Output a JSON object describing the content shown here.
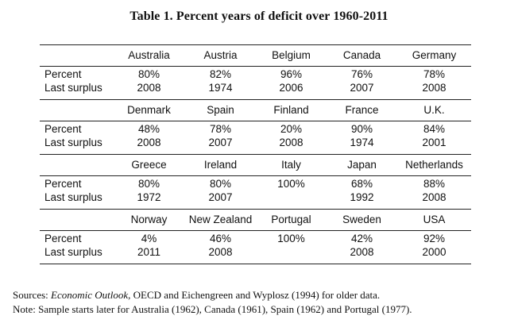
{
  "title": "Table 1. Percent years of deficit over 1960-2011",
  "row_labels": {
    "percent": "Percent",
    "last_surplus": "Last surplus"
  },
  "blocks": [
    {
      "countries": [
        "Australia",
        "Austria",
        "Belgium",
        "Canada",
        "Germany"
      ],
      "percent": [
        "80%",
        "82%",
        "96%",
        "76%",
        "78%"
      ],
      "last_surplus": [
        "2008",
        "1974",
        "2006",
        "2007",
        "2008"
      ]
    },
    {
      "countries": [
        "Denmark",
        "Spain",
        "Finland",
        "France",
        "U.K."
      ],
      "percent": [
        "48%",
        "78%",
        "20%",
        "90%",
        "84%"
      ],
      "last_surplus": [
        "2008",
        "2007",
        "2008",
        "1974",
        "2001"
      ]
    },
    {
      "countries": [
        "Greece",
        "Ireland",
        "Italy",
        "Japan",
        "Netherlands"
      ],
      "percent": [
        "80%",
        "80%",
        "100%",
        "68%",
        "88%"
      ],
      "last_surplus": [
        "1972",
        "2007",
        "",
        "1992",
        "2008"
      ]
    },
    {
      "countries": [
        "Norway",
        "New Zealand",
        "Portugal",
        "Sweden",
        "USA"
      ],
      "percent": [
        "4%",
        "46%",
        "100%",
        "42%",
        "92%"
      ],
      "last_surplus": [
        "2011",
        "2008",
        "",
        "2008",
        "2000"
      ]
    }
  ],
  "notes": {
    "sources_prefix": "Sources: ",
    "sources_italic": "Economic Outlook",
    "sources_rest": ", OECD and Eichengreen and Wyplosz (1994) for older data.",
    "note": "Note: Sample starts later for Australia (1962), Canada (1961), Spain (1962) and Portugal (1977)."
  }
}
